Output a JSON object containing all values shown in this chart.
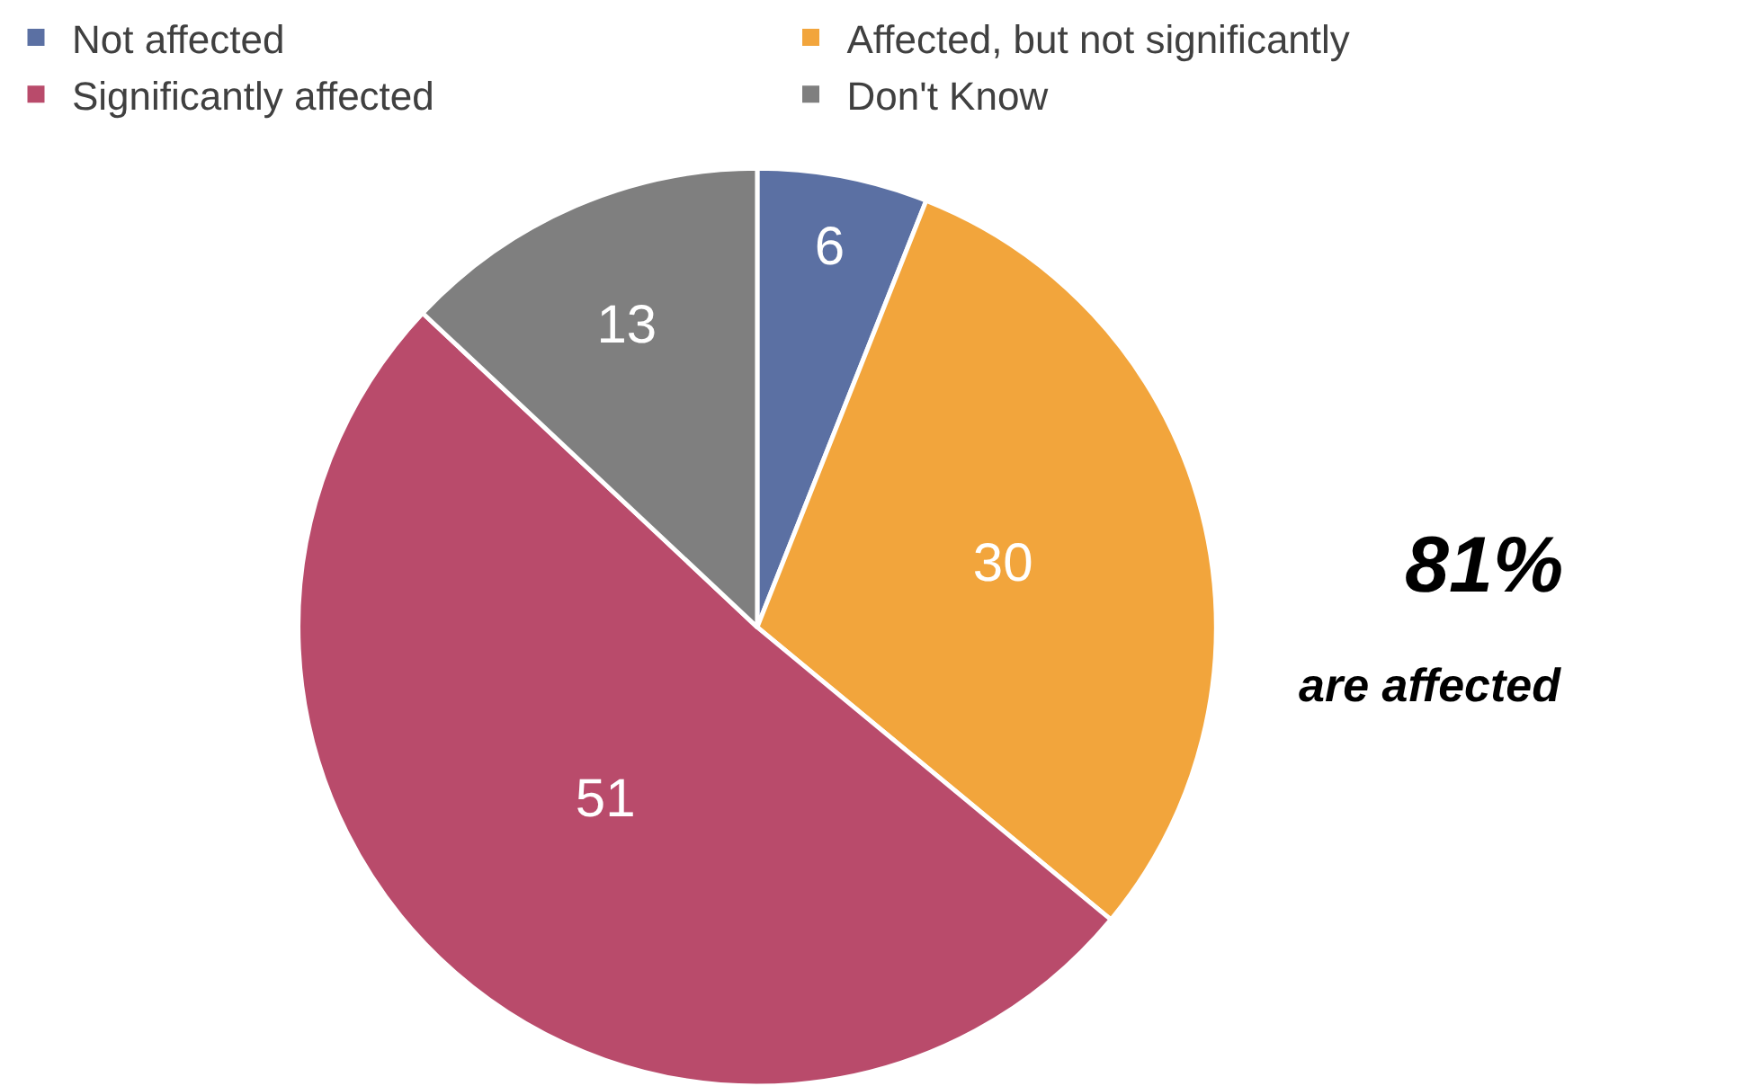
{
  "chart_data": {
    "type": "pie",
    "categories": [
      "Not affected",
      "Affected, but not significantly",
      "Significantly affected",
      "Don't Know"
    ],
    "values": [
      6,
      30,
      51,
      13
    ],
    "colors": [
      "#5b70a3",
      "#f2a53c",
      "#b94b6b",
      "#7f7f7f"
    ],
    "data_labels": true,
    "legend": "top",
    "annotations": [
      "81%",
      "are affected"
    ]
  }
}
